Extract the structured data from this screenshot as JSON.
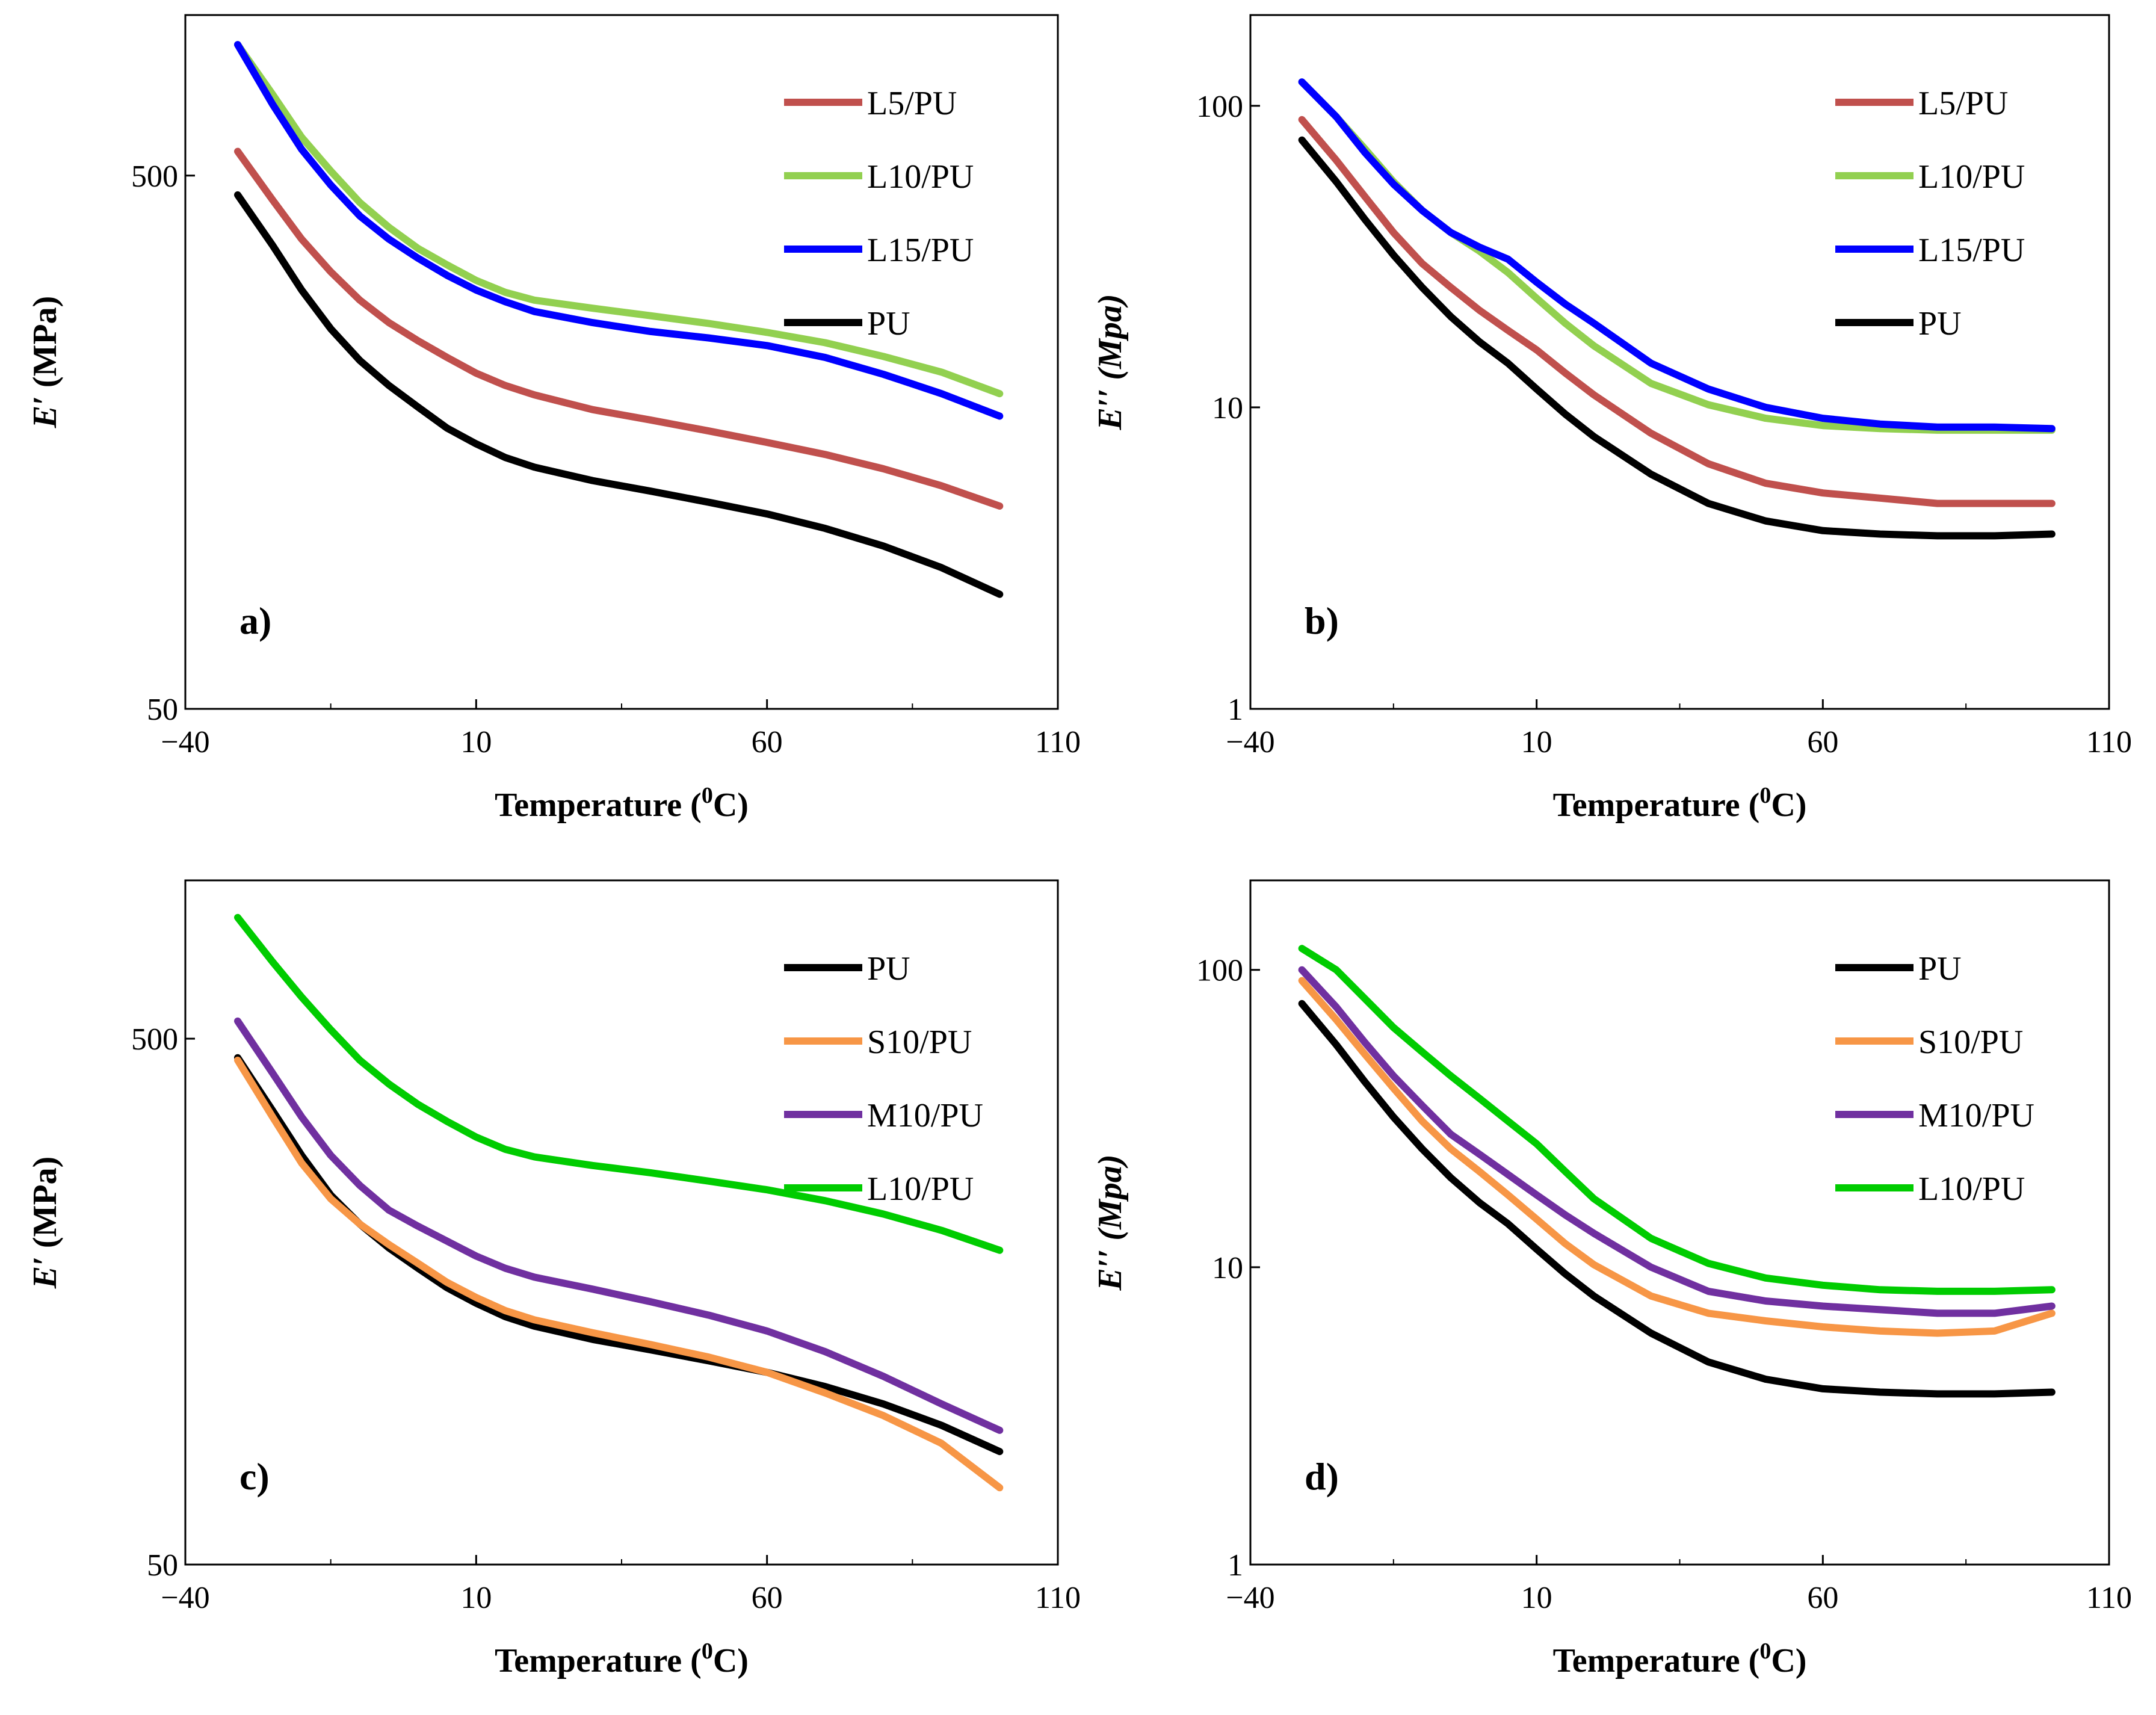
{
  "chart_data": [
    {
      "panel": "a",
      "type": "line",
      "yscale": "log",
      "xlabel": "Temperature (0C)",
      "ylabel": "E′ (MPa)",
      "ylabel_italic": "E′",
      "ylabel_rest": " (MPa)",
      "xlim": [
        -40,
        110
      ],
      "ylim": [
        50,
        1000
      ],
      "xticks": [
        "−40",
        "10",
        "60",
        "110"
      ],
      "yticks": [
        "50",
        "500"
      ],
      "legend": [
        "L5/PU",
        "L10/PU",
        "L15/PU",
        "PU"
      ],
      "series": [
        {
          "name": "L5/PU",
          "color": "#c0504d",
          "x": [
            -31,
            -25,
            -20,
            -15,
            -10,
            -5,
            0,
            5,
            10,
            15,
            20,
            30,
            40,
            50,
            60,
            70,
            80,
            90,
            100
          ],
          "y": [
            555,
            450,
            380,
            330,
            292,
            265,
            245,
            228,
            213,
            202,
            194,
            182,
            174,
            166,
            158,
            150,
            141,
            131,
            120
          ]
        },
        {
          "name": "L10/PU",
          "color": "#92d050",
          "x": [
            -31,
            -25,
            -20,
            -15,
            -10,
            -5,
            0,
            5,
            10,
            15,
            20,
            30,
            40,
            50,
            60,
            70,
            80,
            90,
            100
          ],
          "y": [
            880,
            710,
            590,
            510,
            445,
            400,
            365,
            340,
            318,
            302,
            292,
            282,
            273,
            264,
            254,
            243,
            229,
            214,
            195
          ]
        },
        {
          "name": "L15/PU",
          "color": "#0000ff",
          "x": [
            -31,
            -25,
            -20,
            -15,
            -10,
            -5,
            0,
            5,
            10,
            15,
            20,
            30,
            40,
            50,
            60,
            70,
            80,
            90,
            100
          ],
          "y": [
            880,
            680,
            560,
            480,
            420,
            380,
            350,
            325,
            305,
            290,
            278,
            265,
            255,
            248,
            240,
            228,
            212,
            195,
            177
          ]
        },
        {
          "name": "PU",
          "color": "#000000",
          "x": [
            -31,
            -25,
            -20,
            -15,
            -10,
            -5,
            0,
            5,
            10,
            15,
            20,
            30,
            40,
            50,
            60,
            70,
            80,
            90,
            100
          ],
          "y": [
            460,
            370,
            305,
            258,
            225,
            202,
            184,
            168,
            157,
            148,
            142,
            134,
            128,
            122,
            116,
            109,
            101,
            92,
            82
          ]
        }
      ]
    },
    {
      "panel": "b",
      "type": "line",
      "yscale": "log",
      "xlabel": "Temperature (0C)",
      "ylabel": "E′′ (Mpa)",
      "ylabel_italic": "E′′ (Mpa)",
      "ylabel_rest": "",
      "xlim": [
        -40,
        110
      ],
      "ylim": [
        1,
        200
      ],
      "xticks": [
        "−40",
        "10",
        "60",
        "110"
      ],
      "yticks": [
        "1",
        "10",
        "100"
      ],
      "legend": [
        "L5/PU",
        "L10/PU",
        "L15/PU",
        "PU"
      ],
      "series": [
        {
          "name": "L5/PU",
          "color": "#c0504d",
          "x": [
            -31,
            -25,
            -20,
            -15,
            -10,
            -5,
            0,
            5,
            10,
            15,
            20,
            30,
            40,
            50,
            60,
            70,
            80,
            90,
            100
          ],
          "y": [
            90,
            66,
            50,
            38,
            30,
            25,
            21,
            18,
            15.5,
            13,
            11,
            8.2,
            6.5,
            5.6,
            5.2,
            5.0,
            4.8,
            4.8,
            4.8
          ]
        },
        {
          "name": "L10/PU",
          "color": "#92d050",
          "x": [
            -31,
            -25,
            -20,
            -15,
            -10,
            -5,
            0,
            5,
            10,
            15,
            20,
            30,
            40,
            50,
            60,
            70,
            80,
            90,
            100
          ],
          "y": [
            120,
            92,
            72,
            56,
            45,
            38,
            33,
            28,
            23,
            19,
            16,
            12,
            10.2,
            9.2,
            8.7,
            8.5,
            8.4,
            8.4,
            8.4
          ]
        },
        {
          "name": "L15/PU",
          "color": "#0000ff",
          "x": [
            -31,
            -25,
            -20,
            -15,
            -10,
            -5,
            0,
            5,
            10,
            15,
            20,
            30,
            40,
            50,
            60,
            70,
            80,
            90,
            100
          ],
          "y": [
            120,
            92,
            70,
            55,
            45,
            38,
            34,
            31,
            26,
            22,
            19,
            14,
            11.5,
            10,
            9.2,
            8.8,
            8.6,
            8.6,
            8.5
          ]
        },
        {
          "name": "PU",
          "color": "#000000",
          "x": [
            -31,
            -25,
            -20,
            -15,
            -10,
            -5,
            0,
            5,
            10,
            15,
            20,
            30,
            40,
            50,
            60,
            70,
            80,
            90,
            100
          ],
          "y": [
            77,
            56,
            42,
            32,
            25,
            20,
            16.5,
            14,
            11.5,
            9.5,
            8,
            6,
            4.8,
            4.2,
            3.9,
            3.8,
            3.75,
            3.75,
            3.8
          ]
        }
      ]
    },
    {
      "panel": "c",
      "type": "line",
      "yscale": "log",
      "xlabel": "Temperature (0C)",
      "ylabel": "E′ (MPa)",
      "ylabel_italic": "E′",
      "ylabel_rest": " (MPa)",
      "xlim": [
        -40,
        110
      ],
      "ylim": [
        50,
        1000
      ],
      "xticks": [
        "−40",
        "10",
        "60",
        "110"
      ],
      "yticks": [
        "50",
        "500"
      ],
      "legend": [
        "PU",
        "S10/PU",
        "M10/PU",
        "L10/PU"
      ],
      "series": [
        {
          "name": "PU",
          "color": "#000000",
          "x": [
            -31,
            -25,
            -20,
            -15,
            -10,
            -5,
            0,
            5,
            10,
            15,
            20,
            30,
            40,
            50,
            60,
            70,
            80,
            90,
            100
          ],
          "y": [
            460,
            365,
            300,
            252,
            222,
            200,
            183,
            168,
            157,
            148,
            142,
            134,
            128,
            122,
            116,
            109,
            101,
            92,
            82
          ]
        },
        {
          "name": "S10/PU",
          "color": "#f79646",
          "x": [
            -31,
            -25,
            -20,
            -15,
            -10,
            -5,
            0,
            5,
            10,
            15,
            20,
            30,
            40,
            50,
            60,
            70,
            80,
            90,
            100
          ],
          "y": [
            455,
            355,
            290,
            248,
            222,
            203,
            187,
            172,
            161,
            152,
            146,
            138,
            131,
            124,
            116,
            106,
            96,
            85,
            70
          ]
        },
        {
          "name": "M10/PU",
          "color": "#7030a0",
          "x": [
            -31,
            -25,
            -20,
            -15,
            -10,
            -5,
            0,
            5,
            10,
            15,
            20,
            30,
            40,
            50,
            60,
            70,
            80,
            90,
            100
          ],
          "y": [
            540,
            430,
            355,
            300,
            263,
            236,
            220,
            206,
            193,
            183,
            176,
            167,
            158,
            149,
            139,
            127,
            114,
            101,
            90
          ]
        },
        {
          "name": "L10/PU",
          "color": "#00cc00",
          "x": [
            -31,
            -25,
            -20,
            -15,
            -10,
            -5,
            0,
            5,
            10,
            15,
            20,
            30,
            40,
            50,
            60,
            70,
            80,
            90,
            100
          ],
          "y": [
            850,
            700,
            600,
            520,
            455,
            410,
            375,
            348,
            325,
            308,
            298,
            287,
            278,
            268,
            258,
            246,
            232,
            216,
            198
          ]
        }
      ]
    },
    {
      "panel": "d",
      "type": "line",
      "yscale": "log",
      "xlabel": "Temperature (0C)",
      "ylabel": "E′′ (Mpa)",
      "ylabel_italic": "E′′ (Mpa)",
      "ylabel_rest": "",
      "xlim": [
        -40,
        110
      ],
      "ylim": [
        1,
        200
      ],
      "xticks": [
        "−40",
        "10",
        "60",
        "110"
      ],
      "yticks": [
        "1",
        "10",
        "100"
      ],
      "legend": [
        "PU",
        "S10/PU",
        "M10/PU",
        "L10/PU"
      ],
      "series": [
        {
          "name": "PU",
          "color": "#000000",
          "x": [
            -31,
            -25,
            -20,
            -15,
            -10,
            -5,
            0,
            5,
            10,
            15,
            20,
            30,
            40,
            50,
            60,
            70,
            80,
            90,
            100
          ],
          "y": [
            77,
            56,
            42,
            32,
            25,
            20,
            16.5,
            14,
            11.5,
            9.5,
            8,
            6,
            4.8,
            4.2,
            3.9,
            3.8,
            3.75,
            3.75,
            3.8
          ]
        },
        {
          "name": "S10/PU",
          "color": "#f79646",
          "x": [
            -31,
            -25,
            -20,
            -15,
            -10,
            -5,
            0,
            5,
            10,
            15,
            20,
            30,
            40,
            50,
            60,
            70,
            80,
            90,
            100
          ],
          "y": [
            92,
            68,
            52,
            40,
            31,
            25,
            21,
            17.5,
            14.5,
            12,
            10.2,
            8,
            7,
            6.6,
            6.3,
            6.1,
            6.0,
            6.1,
            7.0
          ]
        },
        {
          "name": "M10/PU",
          "color": "#7030a0",
          "x": [
            -31,
            -25,
            -20,
            -15,
            -10,
            -5,
            0,
            5,
            10,
            15,
            20,
            30,
            40,
            50,
            60,
            70,
            80,
            90,
            100
          ],
          "y": [
            100,
            75,
            57,
            44,
            35,
            28,
            24,
            20.5,
            17.5,
            15,
            13,
            10,
            8.3,
            7.7,
            7.4,
            7.2,
            7.0,
            7.0,
            7.4
          ]
        },
        {
          "name": "L10/PU",
          "color": "#00cc00",
          "x": [
            -31,
            -25,
            -20,
            -15,
            -10,
            -5,
            0,
            5,
            10,
            15,
            20,
            30,
            40,
            50,
            60,
            70,
            80,
            90,
            100
          ],
          "y": [
            118,
            100,
            80,
            64,
            53,
            44,
            37,
            31,
            26,
            21,
            17,
            12.5,
            10.3,
            9.2,
            8.7,
            8.4,
            8.3,
            8.3,
            8.4
          ]
        }
      ]
    }
  ],
  "panel_labels": [
    "a)",
    "b)",
    "c)",
    "d)"
  ]
}
